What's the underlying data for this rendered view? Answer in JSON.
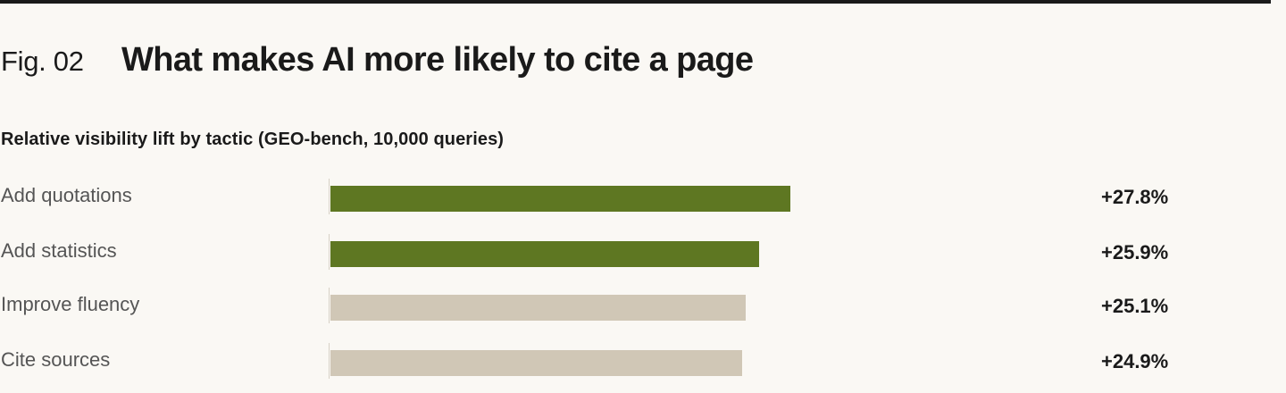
{
  "figure": {
    "number_label": "Fig. 02",
    "title": "What makes AI more likely to cite a page"
  },
  "chart_data": {
    "type": "bar",
    "orientation": "horizontal",
    "title": "Relative visibility lift by tactic (GEO-bench, 10,000 queries)",
    "categories": [
      "Add quotations",
      "Add statistics",
      "Improve fluency",
      "Cite sources"
    ],
    "values": [
      27.8,
      25.9,
      25.1,
      24.9
    ],
    "value_labels": [
      "+27.8%",
      "+25.9%",
      "+25.1%",
      "+24.9%"
    ],
    "highlighted": [
      true,
      true,
      false,
      false
    ],
    "xlim": [
      0,
      38
    ],
    "colors": {
      "highlight": "#5e7722",
      "default": "#d0c7b6"
    }
  }
}
